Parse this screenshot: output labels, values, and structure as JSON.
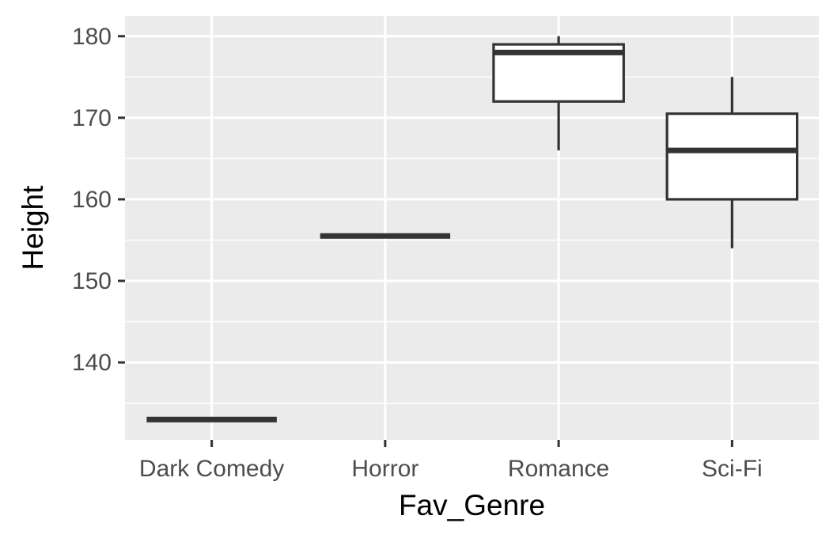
{
  "chart_data": {
    "type": "boxplot",
    "title": "",
    "xlabel": "Fav_Genre",
    "ylabel": "Height",
    "categories": [
      "Dark Comedy",
      "Horror",
      "Romance",
      "Sci-Fi"
    ],
    "ylim": [
      130.5,
      182.5
    ],
    "yticks": [
      140,
      150,
      160,
      170,
      180
    ],
    "ytick_labels": [
      "140",
      "150",
      "160",
      "170",
      "180"
    ],
    "grid": true,
    "boxes": [
      {
        "category": "Dark Comedy",
        "min": 133,
        "q1": 133,
        "median": 133,
        "q3": 133,
        "max": 133
      },
      {
        "category": "Horror",
        "min": 155.5,
        "q1": 155.5,
        "median": 155.5,
        "q3": 155.5,
        "max": 155.5
      },
      {
        "category": "Romance",
        "min": 166,
        "q1": 172,
        "median": 178,
        "q3": 179,
        "max": 180
      },
      {
        "category": "Sci-Fi",
        "min": 154,
        "q1": 160,
        "median": 166,
        "q3": 170.5,
        "max": 175
      }
    ],
    "colors": {
      "panel": "#ebebeb",
      "grid_major": "#ffffff",
      "box_fill": "#ffffff",
      "box_line": "#333333",
      "tick": "#333333"
    }
  }
}
